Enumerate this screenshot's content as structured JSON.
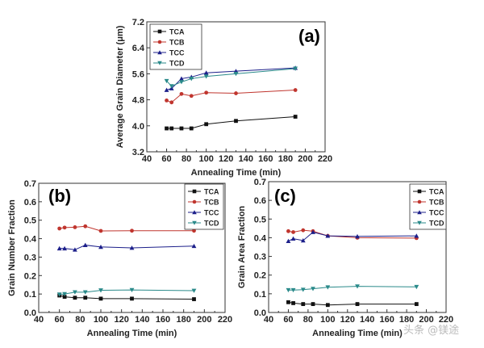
{
  "chart_data": [
    {
      "type": "line",
      "panel_label": "(a)",
      "xlabel": "Annealing Time (min)",
      "ylabel": "Average Grain Diameter (μm)",
      "xlim": [
        40,
        220
      ],
      "ylim": [
        3.2,
        7.2
      ],
      "xticks": [
        40,
        60,
        80,
        100,
        120,
        140,
        160,
        180,
        200,
        220
      ],
      "yticks": [
        "3.2",
        "4.0",
        "4.8",
        "5.6",
        "6.4",
        "7.2"
      ],
      "legend_position": "top-left",
      "x": [
        60,
        65,
        75,
        85,
        100,
        130,
        190
      ],
      "series": [
        {
          "name": "TCA",
          "values": [
            3.92,
            3.92,
            3.92,
            3.92,
            4.05,
            4.15,
            4.28
          ]
        },
        {
          "name": "TCB",
          "values": [
            4.78,
            4.72,
            4.98,
            4.92,
            5.02,
            5.0,
            5.1
          ]
        },
        {
          "name": "TCC",
          "values": [
            5.1,
            5.15,
            5.45,
            5.5,
            5.63,
            5.68,
            5.78
          ]
        },
        {
          "name": "TCD",
          "values": [
            5.38,
            5.22,
            5.35,
            5.45,
            5.52,
            5.6,
            5.76
          ]
        }
      ]
    },
    {
      "type": "line",
      "panel_label": "(b)",
      "xlabel": "Annealing Time (min)",
      "ylabel": "Grain Number Fraction",
      "xlim": [
        40,
        220
      ],
      "ylim": [
        0,
        0.7
      ],
      "xticks": [
        40,
        60,
        80,
        100,
        120,
        140,
        160,
        180,
        200,
        220
      ],
      "yticks": [
        "0.0",
        "0.1",
        "0.2",
        "0.3",
        "0.4",
        "0.5",
        "0.6",
        "0.7"
      ],
      "legend_position": "top-right",
      "x": [
        60,
        65,
        75,
        85,
        100,
        130,
        190
      ],
      "series": [
        {
          "name": "TCA",
          "values": [
            0.092,
            0.085,
            0.08,
            0.08,
            0.075,
            0.075,
            0.072
          ]
        },
        {
          "name": "TCB",
          "values": [
            0.455,
            0.46,
            0.462,
            0.467,
            0.442,
            0.443,
            0.443
          ]
        },
        {
          "name": "TCC",
          "values": [
            0.347,
            0.347,
            0.34,
            0.365,
            0.355,
            0.35,
            0.36
          ]
        },
        {
          "name": "TCD",
          "values": [
            0.098,
            0.1,
            0.11,
            0.11,
            0.12,
            0.122,
            0.118
          ]
        }
      ]
    },
    {
      "type": "line",
      "panel_label": "(c)",
      "xlabel": "Annealing Time (min)",
      "ylabel": "Grain Area Fraction",
      "xlim": [
        40,
        220
      ],
      "ylim": [
        0,
        0.7
      ],
      "xticks": [
        40,
        60,
        80,
        100,
        120,
        140,
        160,
        180,
        200,
        220
      ],
      "yticks": [
        "0.0",
        "0.1",
        "0.2",
        "0.3",
        "0.4",
        "0.5",
        "0.6",
        "0.7"
      ],
      "legend_position": "top-right",
      "x": [
        60,
        65,
        75,
        85,
        100,
        130,
        190
      ],
      "series": [
        {
          "name": "TCA",
          "values": [
            0.055,
            0.05,
            0.045,
            0.045,
            0.04,
            0.045,
            0.045
          ]
        },
        {
          "name": "TCB",
          "values": [
            0.435,
            0.43,
            0.44,
            0.435,
            0.41,
            0.4,
            0.398
          ]
        },
        {
          "name": "TCC",
          "values": [
            0.382,
            0.395,
            0.385,
            0.43,
            0.41,
            0.407,
            0.41
          ]
        },
        {
          "name": "TCD",
          "values": [
            0.12,
            0.12,
            0.122,
            0.127,
            0.135,
            0.14,
            0.137
          ]
        }
      ]
    }
  ],
  "series_colors": {
    "TCA": "#111111",
    "TCB": "#c0352e",
    "TCC": "#1c1f8a",
    "TCD": "#2a8a8a"
  },
  "series_markers": {
    "TCA": "square",
    "TCB": "circle",
    "TCC": "triangle-up",
    "TCD": "triangle-down"
  },
  "watermark": "头条 @镁途"
}
